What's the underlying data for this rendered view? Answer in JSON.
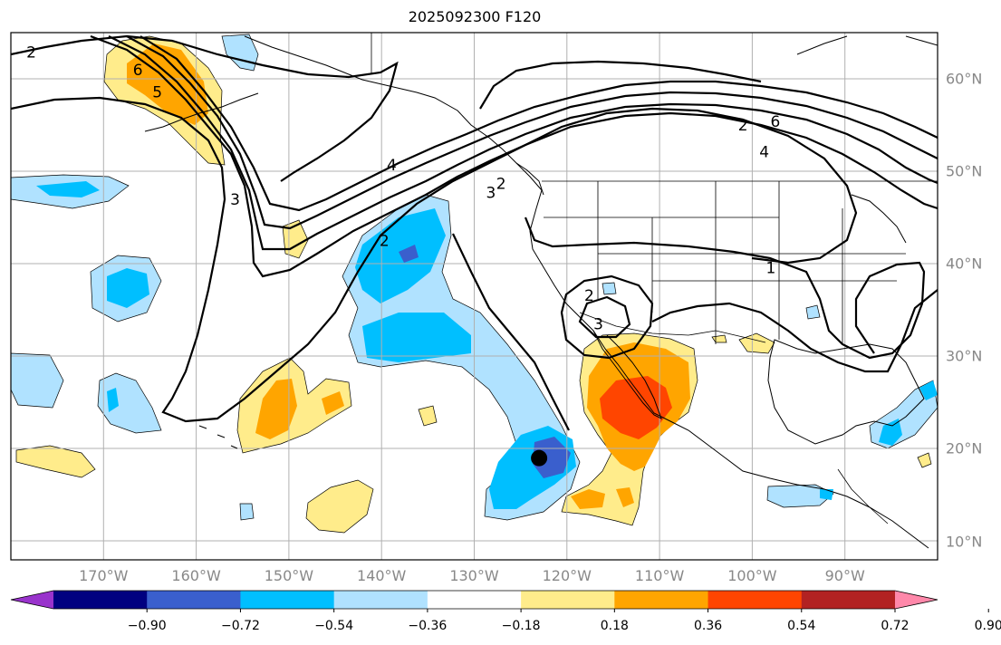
{
  "title": "2025092300 F120",
  "colors": {
    "contour": "#000000",
    "grid": "#b0b0b0",
    "tick_label": "#888888",
    "coast": "#000000"
  },
  "map": {
    "projection": "plate-carree",
    "lon_range": [
      -180,
      -80
    ],
    "lat_range": [
      8,
      65
    ],
    "lon_ticks": [
      {
        "value": -170,
        "label": "170°W"
      },
      {
        "value": -160,
        "label": "160°W"
      },
      {
        "value": -150,
        "label": "150°W"
      },
      {
        "value": -140,
        "label": "140°W"
      },
      {
        "value": -130,
        "label": "130°W"
      },
      {
        "value": -120,
        "label": "120°W"
      },
      {
        "value": -110,
        "label": "110°W"
      },
      {
        "value": -100,
        "label": "100°W"
      },
      {
        "value": -90,
        "label": "90°W"
      }
    ],
    "lat_ticks": [
      {
        "value": 60,
        "label": "60°N"
      },
      {
        "value": 50,
        "label": "50°N"
      },
      {
        "value": 40,
        "label": "40°N"
      },
      {
        "value": 30,
        "label": "30°N"
      },
      {
        "value": 20,
        "label": "20°N"
      },
      {
        "value": 10,
        "label": "10°N"
      }
    ],
    "marker": {
      "name": "storm-center",
      "lon": -123,
      "lat": 19
    }
  },
  "colorbar": {
    "colors": [
      "#9933cc",
      "#000080",
      "#3a5fcd",
      "#00bfff",
      "#b0e2ff",
      "#ffffff",
      "#ffec8b",
      "#ffa500",
      "#ff4500",
      "#b22222",
      "#ff88aa"
    ],
    "labels": [
      "−0.90",
      "−0.72",
      "−0.54",
      "−0.36",
      "−0.18",
      "0.18",
      "0.36",
      "0.54",
      "0.72",
      "0.90"
    ]
  },
  "contour_labels": [
    {
      "text": "2",
      "lon": -177.8,
      "lat": 62.9
    },
    {
      "text": "6",
      "lon": -166.3,
      "lat": 61.0
    },
    {
      "text": "5",
      "lon": -164.2,
      "lat": 58.6
    },
    {
      "text": "3",
      "lon": -155.8,
      "lat": 47.0
    },
    {
      "text": "4",
      "lon": -138.9,
      "lat": 50.7
    },
    {
      "text": "2",
      "lon": -139.7,
      "lat": 42.5
    },
    {
      "text": "3",
      "lon": -128.2,
      "lat": 47.7
    },
    {
      "text": "2",
      "lon": -127.1,
      "lat": 48.7
    },
    {
      "text": "2",
      "lon": -117.6,
      "lat": 36.6
    },
    {
      "text": "3",
      "lon": -116.6,
      "lat": 33.5
    },
    {
      "text": "1",
      "lon": -98.0,
      "lat": 39.6
    },
    {
      "text": "2",
      "lon": -101.0,
      "lat": 55.0
    },
    {
      "text": "6",
      "lon": -97.5,
      "lat": 55.4
    },
    {
      "text": "4",
      "lon": -98.7,
      "lat": 52.1
    }
  ]
}
